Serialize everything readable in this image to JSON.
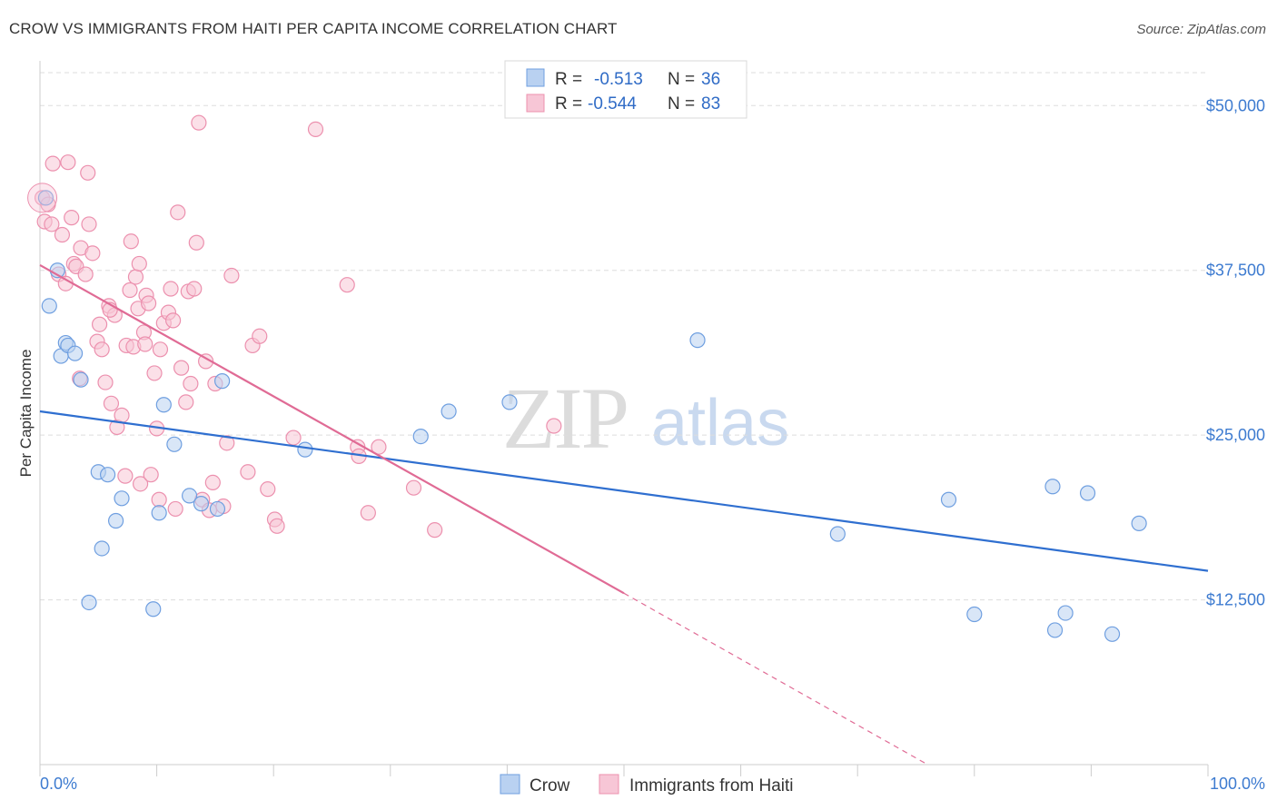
{
  "title": "CROW VS IMMIGRANTS FROM HAITI PER CAPITA INCOME CORRELATION CHART",
  "source": "Source: ZipAtlas.com",
  "watermark": {
    "zip": "ZIP",
    "atlas": "atlas"
  },
  "colors": {
    "crow_fill": "#b9d1f1",
    "crow_stroke": "#6f9fe0",
    "crow_line": "#2f6fd0",
    "haiti_fill": "#f7c6d6",
    "haiti_stroke": "#ec90ae",
    "haiti_line": "#e06b95",
    "tick_text": "#3d7bd0",
    "grid": "#dddddd"
  },
  "legend": {
    "rows": [
      {
        "r_label": "R =",
        "r_value": "-0.513",
        "n_label": "N =",
        "n_value": "36"
      },
      {
        "r_label": "R =",
        "r_value": "-0.544",
        "n_label": "N =",
        "n_value": "83"
      }
    ]
  },
  "bottom_legend": [
    "Crow",
    "Immigrants from Haiti"
  ],
  "chart_data": {
    "type": "scatter",
    "title": "CROW VS IMMIGRANTS FROM HAITI PER CAPITA INCOME CORRELATION CHART",
    "xlabel": "",
    "ylabel": "Per Capita Income",
    "xlim": [
      0,
      100
    ],
    "ylim": [
      0,
      52500
    ],
    "x_tick_labels": [
      "0.0%",
      "100.0%"
    ],
    "y_ticks": [
      12500,
      25000,
      37500,
      50000
    ],
    "y_tick_labels": [
      "$12,500",
      "$25,000",
      "$37,500",
      "$50,000"
    ],
    "grid": true,
    "legend_position": "top-center",
    "series": [
      {
        "name": "Crow",
        "trend": {
          "x": [
            0,
            100
          ],
          "y": [
            26800,
            14700
          ]
        },
        "points": [
          [
            0.5,
            43000
          ],
          [
            0.8,
            34800
          ],
          [
            1.5,
            37500
          ],
          [
            1.8,
            31000
          ],
          [
            2.2,
            32000
          ],
          [
            2.4,
            31800
          ],
          [
            3.0,
            31200
          ],
          [
            3.5,
            29200
          ],
          [
            4.2,
            12300
          ],
          [
            5.0,
            22200
          ],
          [
            5.8,
            22000
          ],
          [
            6.5,
            18500
          ],
          [
            7.0,
            20200
          ],
          [
            5.3,
            16400
          ],
          [
            9.7,
            11800
          ],
          [
            10.2,
            19100
          ],
          [
            10.6,
            27300
          ],
          [
            11.5,
            24300
          ],
          [
            12.8,
            20400
          ],
          [
            13.8,
            19800
          ],
          [
            15.2,
            19400
          ],
          [
            15.6,
            29100
          ],
          [
            22.7,
            23900
          ],
          [
            32.6,
            24900
          ],
          [
            35.0,
            26800
          ],
          [
            40.2,
            27500
          ],
          [
            56.3,
            32200
          ],
          [
            68.3,
            17500
          ],
          [
            77.8,
            20100
          ],
          [
            80.0,
            11400
          ],
          [
            86.7,
            21100
          ],
          [
            86.9,
            10200
          ],
          [
            87.8,
            11500
          ],
          [
            89.7,
            20600
          ],
          [
            91.8,
            9900
          ],
          [
            94.1,
            18300
          ]
        ]
      },
      {
        "name": "Immigrants from Haiti",
        "trend": {
          "x": [
            0,
            50
          ],
          "y": [
            37900,
            13000
          ]
        },
        "trend_dashed": {
          "x": [
            50,
            76
          ],
          "y": [
            13000,
            0
          ]
        },
        "points": [
          [
            0.2,
            43000
          ],
          [
            0.4,
            41200
          ],
          [
            0.7,
            42500
          ],
          [
            1.0,
            41000
          ],
          [
            1.1,
            45600
          ],
          [
            1.6,
            37200
          ],
          [
            1.9,
            40200
          ],
          [
            2.2,
            36500
          ],
          [
            2.4,
            45700
          ],
          [
            2.7,
            41500
          ],
          [
            2.9,
            38000
          ],
          [
            3.1,
            37800
          ],
          [
            3.4,
            29300
          ],
          [
            3.5,
            39200
          ],
          [
            3.9,
            37200
          ],
          [
            4.1,
            44900
          ],
          [
            4.2,
            41000
          ],
          [
            4.5,
            38800
          ],
          [
            4.9,
            32100
          ],
          [
            5.1,
            33400
          ],
          [
            5.3,
            31500
          ],
          [
            5.6,
            29000
          ],
          [
            5.9,
            34800
          ],
          [
            6.1,
            27400
          ],
          [
            6.4,
            34100
          ],
          [
            6.6,
            25600
          ],
          [
            7.0,
            26500
          ],
          [
            7.4,
            31800
          ],
          [
            7.7,
            36000
          ],
          [
            7.8,
            39700
          ],
          [
            8.0,
            31700
          ],
          [
            8.2,
            37000
          ],
          [
            8.4,
            34600
          ],
          [
            8.6,
            21300
          ],
          [
            8.9,
            32800
          ],
          [
            9.1,
            35600
          ],
          [
            9.3,
            35000
          ],
          [
            9.5,
            22000
          ],
          [
            9.8,
            29700
          ],
          [
            10.0,
            25500
          ],
          [
            10.3,
            31500
          ],
          [
            10.6,
            33500
          ],
          [
            11.0,
            34300
          ],
          [
            11.2,
            36100
          ],
          [
            11.4,
            33700
          ],
          [
            11.6,
            19400
          ],
          [
            11.8,
            41900
          ],
          [
            12.1,
            30100
          ],
          [
            12.5,
            27500
          ],
          [
            12.7,
            35900
          ],
          [
            12.9,
            28900
          ],
          [
            13.2,
            36100
          ],
          [
            13.4,
            39600
          ],
          [
            13.6,
            48700
          ],
          [
            13.9,
            20100
          ],
          [
            14.2,
            30600
          ],
          [
            14.5,
            19300
          ],
          [
            14.8,
            21400
          ],
          [
            15.0,
            28900
          ],
          [
            15.7,
            19600
          ],
          [
            16.0,
            24400
          ],
          [
            16.4,
            37100
          ],
          [
            17.8,
            22200
          ],
          [
            18.2,
            31800
          ],
          [
            18.8,
            32500
          ],
          [
            19.5,
            20900
          ],
          [
            20.1,
            18600
          ],
          [
            20.3,
            18100
          ],
          [
            21.7,
            24800
          ],
          [
            23.6,
            48200
          ],
          [
            26.3,
            36400
          ],
          [
            27.2,
            24100
          ],
          [
            27.3,
            23400
          ],
          [
            28.1,
            19100
          ],
          [
            29.0,
            24100
          ],
          [
            32.0,
            21000
          ],
          [
            33.8,
            17800
          ],
          [
            44.0,
            25700
          ],
          [
            10.2,
            20100
          ],
          [
            7.3,
            21900
          ],
          [
            9.0,
            31900
          ],
          [
            8.5,
            38000
          ],
          [
            6.0,
            34500
          ]
        ]
      }
    ]
  }
}
